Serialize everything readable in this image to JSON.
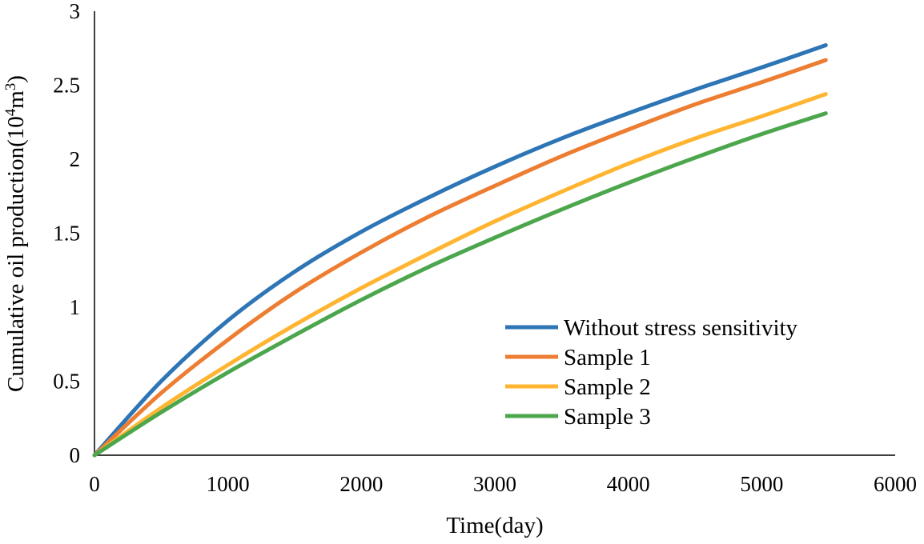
{
  "chart_data": {
    "type": "line",
    "title": "",
    "xlabel": "Time(day)",
    "ylabel": {
      "prefix": "Cumulative oil production(10",
      "sup1": "4",
      "mid": "m",
      "sup2": "3",
      "suffix": ")"
    },
    "xlim": [
      0,
      6000
    ],
    "ylim": [
      0,
      3
    ],
    "x_ticks": [
      "0",
      "1000",
      "2000",
      "3000",
      "4000",
      "5000",
      "6000"
    ],
    "y_ticks": [
      "0",
      "0.5",
      "1",
      "1.5",
      "2",
      "2.5",
      "3"
    ],
    "grid": false,
    "legend_position": "bottom-right",
    "x": [
      0,
      500,
      1000,
      1500,
      2000,
      2500,
      3000,
      3500,
      4000,
      4500,
      5000,
      5480
    ],
    "series": [
      {
        "name": "Without stress sensitivity",
        "color": "#2E75B6",
        "values": [
          0,
          0.5,
          0.91,
          1.24,
          1.51,
          1.74,
          1.95,
          2.14,
          2.31,
          2.47,
          2.62,
          2.77
        ]
      },
      {
        "name": "Sample 1",
        "color": "#ED7D31",
        "values": [
          0,
          0.42,
          0.78,
          1.1,
          1.37,
          1.61,
          1.82,
          2.02,
          2.2,
          2.37,
          2.52,
          2.67
        ]
      },
      {
        "name": "Sample 2",
        "color": "#FFB531",
        "values": [
          0,
          0.32,
          0.61,
          0.88,
          1.13,
          1.36,
          1.58,
          1.78,
          1.97,
          2.14,
          2.29,
          2.44
        ]
      },
      {
        "name": "Sample 3",
        "color": "#4CA64C",
        "values": [
          0,
          0.29,
          0.56,
          0.81,
          1.05,
          1.27,
          1.47,
          1.66,
          1.84,
          2.01,
          2.17,
          2.31
        ]
      }
    ]
  }
}
